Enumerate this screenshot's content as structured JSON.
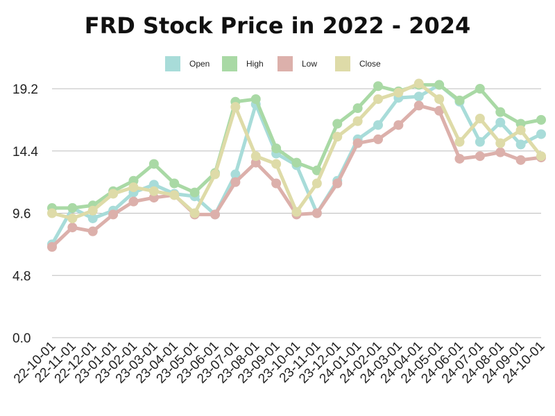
{
  "chart_data": {
    "type": "line",
    "title": "FRD Stock Price in 2022 - 2024",
    "xlabel": "",
    "ylabel": "",
    "ylim": [
      0,
      19.2
    ],
    "yticks": [
      "0.0",
      "4.8",
      "9.6",
      "14.4",
      "19.2"
    ],
    "ytick_values": [
      0,
      4.8,
      9.6,
      14.4,
      19.2
    ],
    "grid": true,
    "legend_position": "top-center",
    "categories": [
      "22-10-01",
      "22-11-01",
      "22-12-01",
      "23-01-01",
      "23-02-01",
      "23-03-01",
      "23-04-01",
      "23-05-01",
      "23-06-01",
      "23-07-01",
      "23-08-01",
      "23-09-01",
      "23-10-01",
      "23-11-01",
      "23-12-01",
      "24-01-01",
      "24-02-01",
      "24-03-01",
      "24-04-01",
      "24-05-01",
      "24-06-01",
      "24-07-01",
      "24-08-01",
      "24-09-01",
      "24-10-01"
    ],
    "series": [
      {
        "name": "Open",
        "color": "#a8dcd9",
        "values": [
          7.2,
          10.0,
          9.2,
          9.8,
          11.2,
          11.8,
          11.1,
          10.9,
          9.5,
          12.6,
          18.0,
          14.2,
          13.3,
          9.6,
          12.1,
          15.3,
          16.4,
          18.5,
          18.6,
          19.5,
          18.2,
          15.1,
          16.6,
          14.9,
          15.7
        ]
      },
      {
        "name": "High",
        "color": "#a9d9a5",
        "values": [
          10.0,
          10.0,
          10.2,
          11.3,
          12.1,
          13.4,
          11.9,
          11.2,
          12.7,
          18.2,
          18.4,
          14.6,
          13.5,
          12.9,
          16.5,
          17.7,
          19.4,
          19.0,
          19.5,
          19.5,
          18.3,
          19.2,
          17.4,
          16.5,
          16.8
        ]
      },
      {
        "name": "Low",
        "color": "#dcb0ab",
        "values": [
          7.0,
          8.5,
          8.2,
          9.5,
          10.5,
          10.8,
          11.0,
          9.5,
          9.5,
          12.0,
          13.5,
          11.9,
          9.5,
          9.6,
          11.9,
          15.0,
          15.3,
          16.4,
          17.9,
          17.5,
          13.8,
          14.0,
          14.3,
          13.7,
          13.9
        ]
      },
      {
        "name": "Close",
        "color": "#dedba8",
        "values": [
          9.6,
          9.2,
          9.8,
          11.1,
          11.6,
          11.3,
          11.0,
          9.6,
          12.6,
          17.8,
          14.0,
          13.4,
          9.7,
          11.9,
          15.5,
          16.7,
          18.4,
          18.9,
          19.6,
          18.4,
          15.1,
          16.9,
          15.0,
          16.0,
          14.0
        ]
      }
    ]
  }
}
